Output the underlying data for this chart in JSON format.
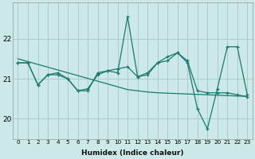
{
  "xlabel": "Humidex (Indice chaleur)",
  "background_color": "#cce8e8",
  "grid_color": "#aacccc",
  "line_color": "#1a7a6e",
  "x_values": [
    0,
    1,
    2,
    3,
    4,
    5,
    6,
    7,
    8,
    9,
    10,
    11,
    12,
    13,
    14,
    15,
    16,
    17,
    18,
    19,
    20,
    21,
    22,
    23
  ],
  "y_main": [
    21.4,
    21.4,
    20.85,
    21.1,
    21.15,
    21.0,
    20.7,
    20.7,
    21.15,
    21.2,
    21.15,
    22.55,
    21.05,
    21.15,
    21.4,
    21.55,
    21.65,
    21.4,
    20.25,
    19.75,
    20.75,
    21.8,
    21.8,
    20.6
  ],
  "y_smooth": [
    21.4,
    21.4,
    20.85,
    21.1,
    21.1,
    21.0,
    20.7,
    20.75,
    21.1,
    21.2,
    21.25,
    21.3,
    21.05,
    21.1,
    21.4,
    21.45,
    21.65,
    21.45,
    20.7,
    20.65,
    20.65,
    20.65,
    20.6,
    20.55
  ],
  "y_regression": [
    21.5,
    21.43,
    21.36,
    21.29,
    21.22,
    21.15,
    21.08,
    21.01,
    20.94,
    20.87,
    20.8,
    20.73,
    20.7,
    20.67,
    20.65,
    20.64,
    20.63,
    20.62,
    20.61,
    20.6,
    20.59,
    20.58,
    20.57,
    20.56
  ],
  "ylim": [
    19.5,
    22.9
  ],
  "yticks": [
    20,
    21,
    22
  ],
  "xticks": [
    0,
    1,
    2,
    3,
    4,
    5,
    6,
    7,
    8,
    9,
    10,
    11,
    12,
    13,
    14,
    15,
    16,
    17,
    18,
    19,
    20,
    21,
    22,
    23
  ],
  "marker": "+",
  "markersize": 3.5,
  "linewidth": 0.9
}
